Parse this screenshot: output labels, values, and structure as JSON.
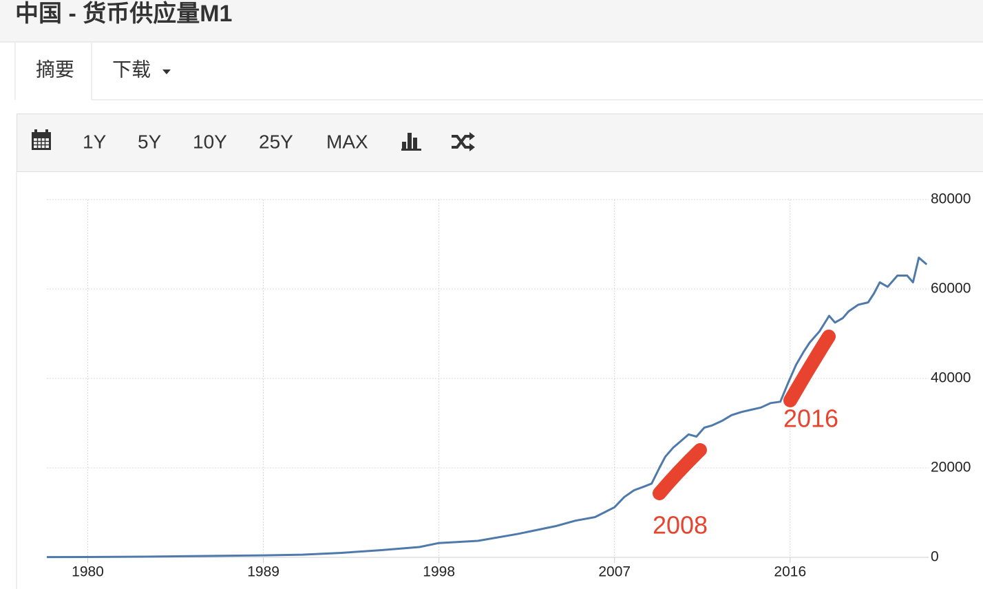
{
  "header": {
    "title": "中国 - 货币供应量M1"
  },
  "tabs": [
    "摘要",
    "下载"
  ],
  "toolbar": {
    "ranges": [
      "1Y",
      "5Y",
      "10Y",
      "25Y",
      "MAX"
    ]
  },
  "chart_data": {
    "type": "line",
    "x": [
      1977.9,
      1980,
      1983,
      1986,
      1989,
      1991,
      1993,
      1995,
      1997,
      1998,
      2000,
      2002,
      2004,
      2005,
      2006,
      2007,
      2007.5,
      2008,
      2008.5,
      2008.9,
      2009.3,
      2009.6,
      2010,
      2010.4,
      2010.8,
      2011.2,
      2011.6,
      2012,
      2012.5,
      2013,
      2013.5,
      2014,
      2014.5,
      2015,
      2015.5,
      2015.9,
      2016.3,
      2016.7,
      2017,
      2017.5,
      2018,
      2018.3,
      2018.7,
      2019,
      2019.5,
      2020,
      2020.3,
      2020.6,
      2021,
      2021.5,
      2022,
      2022.3,
      2022.6,
      2023
    ],
    "series": [
      {
        "color": "#4e79aa",
        "values": [
          60,
          80,
          150,
          300,
          450,
          600,
          1000,
          1600,
          2300,
          3200,
          3700,
          5200,
          7000,
          8200,
          9000,
          11200,
          13500,
          15000,
          15800,
          16500,
          20000,
          22500,
          24500,
          26000,
          27500,
          27000,
          29000,
          29500,
          30500,
          31800,
          32500,
          33000,
          33500,
          34500,
          34800,
          39000,
          43000,
          46000,
          48000,
          50500,
          54000,
          52500,
          53500,
          55000,
          56500,
          57000,
          59000,
          61500,
          60500,
          63000,
          63000,
          61500,
          67000,
          65500
        ]
      }
    ],
    "xlim": [
      1977.9,
      2023.1
    ],
    "xticks": [
      1980,
      1989,
      1998,
      2007,
      2016
    ],
    "ylim": [
      0,
      80000
    ],
    "yticks": [
      0,
      20000,
      40000,
      60000,
      80000
    ],
    "grid": true,
    "annotations": [
      "2008",
      "2016"
    ]
  }
}
